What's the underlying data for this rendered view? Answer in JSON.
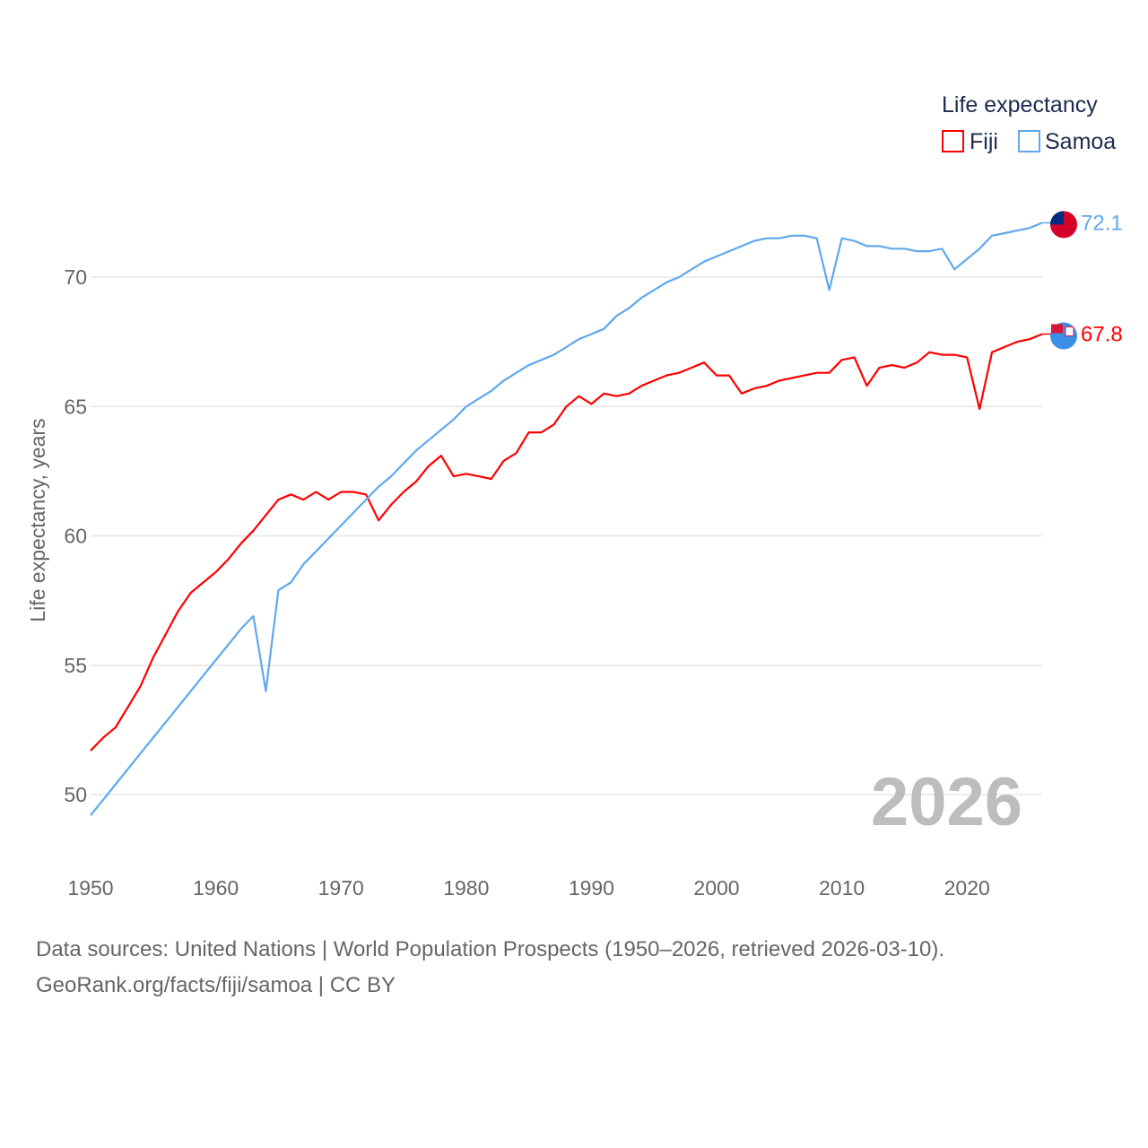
{
  "chart_data": {
    "type": "line",
    "title": "",
    "xlabel": "",
    "ylabel": "Life expectancy, years",
    "xlim": [
      1950,
      2026
    ],
    "ylim": [
      48,
      73
    ],
    "yticks": [
      50,
      55,
      60,
      65,
      70
    ],
    "xticks": [
      1950,
      1960,
      1970,
      1980,
      1990,
      2000,
      2010,
      2020
    ],
    "grid": true,
    "legend": {
      "title": "Life expectancy",
      "placement": "top-right"
    },
    "current_year_label": "2026",
    "x": [
      1950,
      1951,
      1952,
      1953,
      1954,
      1955,
      1956,
      1957,
      1958,
      1959,
      1960,
      1961,
      1962,
      1963,
      1964,
      1965,
      1966,
      1967,
      1968,
      1969,
      1970,
      1971,
      1972,
      1973,
      1974,
      1975,
      1976,
      1977,
      1978,
      1979,
      1980,
      1981,
      1982,
      1983,
      1984,
      1985,
      1986,
      1987,
      1988,
      1989,
      1990,
      1991,
      1992,
      1993,
      1994,
      1995,
      1996,
      1997,
      1998,
      1999,
      2000,
      2001,
      2002,
      2003,
      2004,
      2005,
      2006,
      2007,
      2008,
      2009,
      2010,
      2011,
      2012,
      2013,
      2014,
      2015,
      2016,
      2017,
      2018,
      2019,
      2020,
      2021,
      2022,
      2023,
      2024,
      2025,
      2026
    ],
    "series": [
      {
        "name": "Fiji",
        "color": "#ff0000",
        "end_label": "67.8",
        "values": [
          51.7,
          52.2,
          52.6,
          53.4,
          54.2,
          55.3,
          56.2,
          57.1,
          57.8,
          58.2,
          58.6,
          59.1,
          59.7,
          60.2,
          60.8,
          61.4,
          61.6,
          61.4,
          61.7,
          61.4,
          61.7,
          61.7,
          61.6,
          60.6,
          61.2,
          61.7,
          62.1,
          62.7,
          63.1,
          62.3,
          62.4,
          62.3,
          62.2,
          62.9,
          63.2,
          64.0,
          64.0,
          64.3,
          65.0,
          65.4,
          65.1,
          65.5,
          65.4,
          65.5,
          65.8,
          66.0,
          66.2,
          66.3,
          66.5,
          66.7,
          66.2,
          66.2,
          65.5,
          65.7,
          65.8,
          66.0,
          66.1,
          66.2,
          66.3,
          66.3,
          66.8,
          66.9,
          65.8,
          66.5,
          66.6,
          66.5,
          66.7,
          67.1,
          67.0,
          67.0,
          66.9,
          64.9,
          67.1,
          67.3,
          67.5,
          67.6,
          67.8
        ]
      },
      {
        "name": "Samoa",
        "color": "#5fa8ec",
        "end_label": "72.1",
        "values": [
          49.2,
          49.8,
          50.4,
          51.0,
          51.6,
          52.2,
          52.8,
          53.4,
          54.0,
          54.6,
          55.2,
          55.8,
          56.4,
          56.9,
          54.0,
          57.9,
          58.2,
          58.9,
          59.4,
          59.9,
          60.4,
          60.9,
          61.4,
          61.9,
          62.3,
          62.8,
          63.3,
          63.7,
          64.1,
          64.5,
          65.0,
          65.3,
          65.6,
          66.0,
          66.3,
          66.6,
          66.8,
          67.0,
          67.3,
          67.6,
          67.8,
          68.0,
          68.5,
          68.8,
          69.2,
          69.5,
          69.8,
          70.0,
          70.3,
          70.6,
          70.8,
          71.0,
          71.2,
          71.4,
          71.5,
          71.5,
          71.6,
          71.6,
          71.5,
          69.5,
          71.5,
          71.4,
          71.2,
          71.2,
          71.1,
          71.1,
          71.0,
          71.0,
          71.1,
          70.3,
          70.7,
          71.1,
          71.6,
          71.7,
          71.8,
          71.9,
          72.1
        ]
      }
    ]
  },
  "footer": {
    "line1": "Data sources: United Nations | World Population Prospects (1950–2026, retrieved 2026-03-10).",
    "line2": "GeoRank.org/facts/fiji/samoa | CC BY"
  }
}
